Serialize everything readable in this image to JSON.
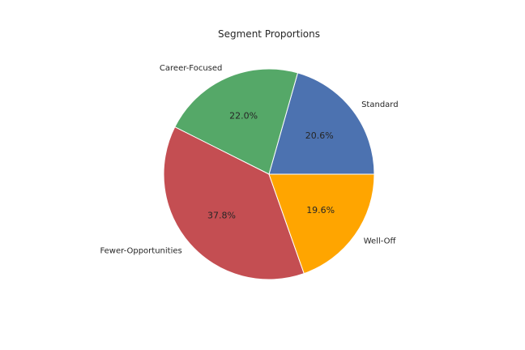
{
  "chart_data": {
    "type": "pie",
    "title": "Segment Proportions",
    "labels": [
      "Standard",
      "Career-Focused",
      "Fewer-Opportunities",
      "Well-Off"
    ],
    "values": [
      20.6,
      22.0,
      37.8,
      19.6
    ],
    "value_labels": [
      "20.6%",
      "22.0%",
      "37.8%",
      "19.6%"
    ],
    "colors": [
      "#4c72b0",
      "#55a868",
      "#c44e52",
      "#ffa500"
    ],
    "start_angle_deg": 0,
    "direction": "counterclockwise",
    "legend": "none"
  }
}
